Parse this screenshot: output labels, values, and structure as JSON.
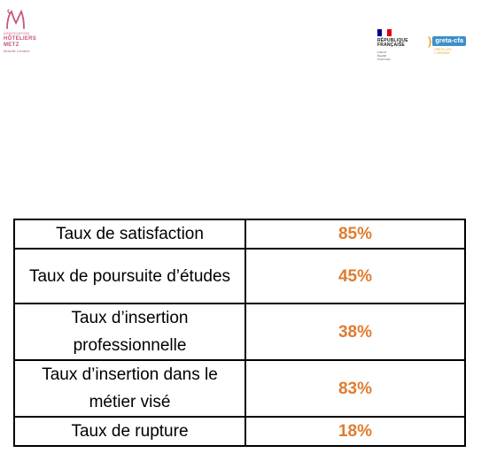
{
  "logos": {
    "hoteliers": {
      "line1": "ASSOCIATION",
      "line2": "HÔTELIERS",
      "line3": "METZ",
      "line4": "Moselle Lorraine",
      "color": "#c4577a"
    },
    "republique": {
      "title_line1": "RÉPUBLIQUE",
      "title_line2": "FRANÇAISE",
      "motto_line1": "Liberté",
      "motto_line2": "Égalité",
      "motto_line3": "Fraternité",
      "flag_colors": [
        "#000091",
        "#ffffff",
        "#e1000f"
      ]
    },
    "greta": {
      "name": "greta-cfa",
      "sub_line1": "GRETA-CFA",
      "sub_line2": "LORRAINE",
      "pill_color": "#3c8fc9",
      "accent_color": "#e8a33d"
    }
  },
  "stats": {
    "value_color": "#e07c30",
    "rows": [
      {
        "label": "Taux de satisfaction",
        "value": "85%"
      },
      {
        "label": "Taux de poursuite d’études",
        "value": "45%"
      },
      {
        "label": "Taux d’insertion professionnelle",
        "value": "38%"
      },
      {
        "label": "Taux d’insertion dans le métier visé",
        "value": "83%"
      },
      {
        "label": "Taux de rupture",
        "value": "18%"
      }
    ]
  }
}
